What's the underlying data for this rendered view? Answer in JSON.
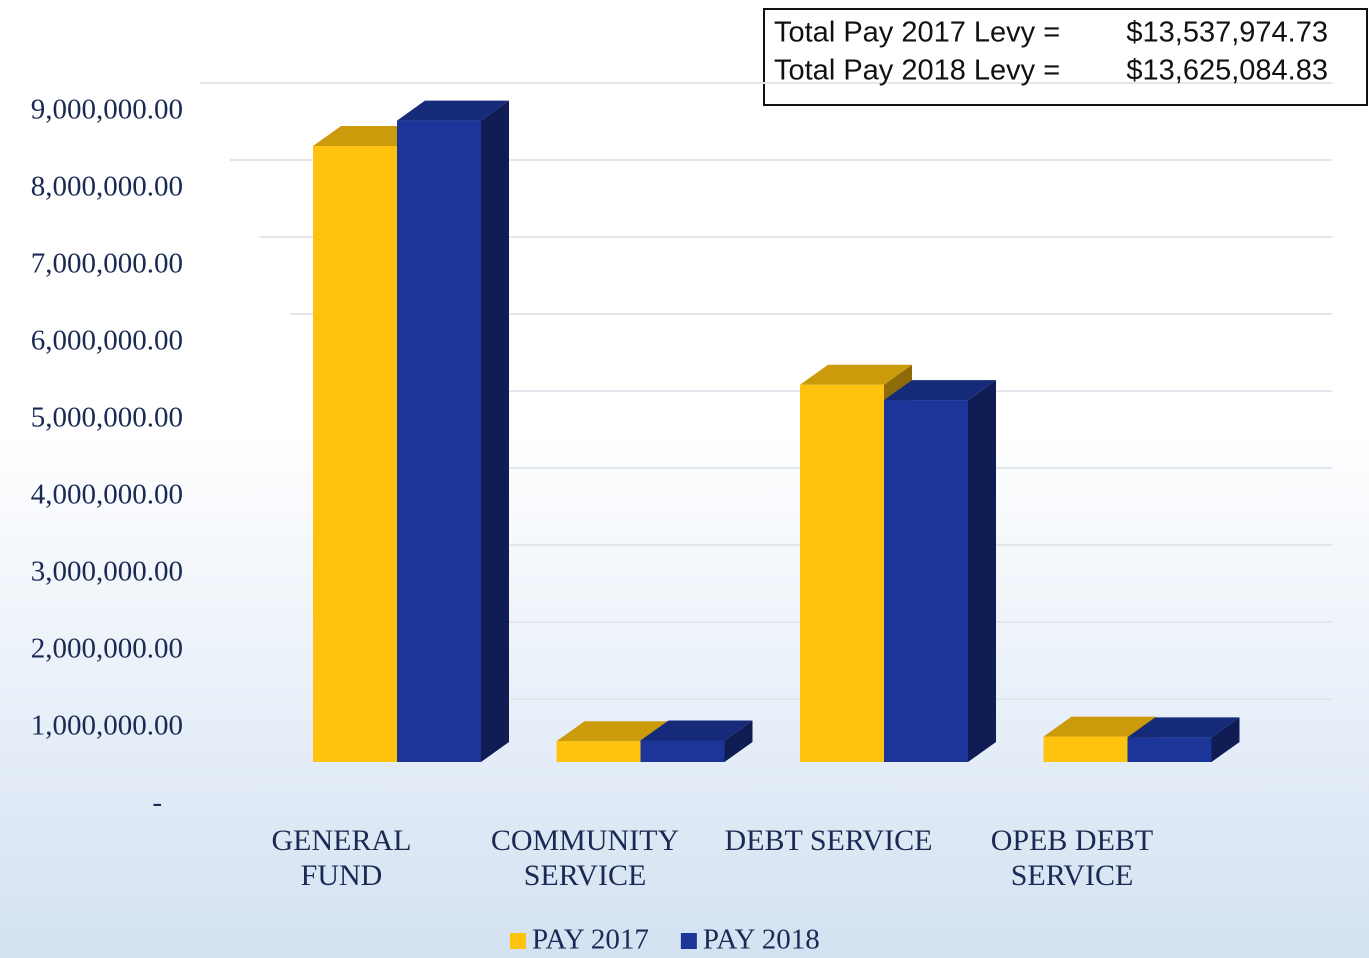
{
  "chart_data": {
    "type": "bar3d",
    "categories": [
      "GENERAL FUND",
      "COMMUNITY SERVICE",
      "DEBT SERVICE",
      "OPEB DEBT SERVICE"
    ],
    "series": [
      {
        "name": "PAY 2017",
        "color": "#ffc20e",
        "values": [
          8000000,
          270000,
          4900000,
          330000
        ]
      },
      {
        "name": "PAY 2018",
        "color": "#1c3598",
        "values": [
          8330000,
          280000,
          4700000,
          320000
        ]
      }
    ],
    "ylim": [
      0,
      9000000
    ],
    "yticks": [
      {
        "value": 0,
        "label": "-"
      },
      {
        "value": 1000000,
        "label": "1,000,000.00"
      },
      {
        "value": 2000000,
        "label": "2,000,000.00"
      },
      {
        "value": 3000000,
        "label": "3,000,000.00"
      },
      {
        "value": 4000000,
        "label": "4,000,000.00"
      },
      {
        "value": 5000000,
        "label": "5,000,000.00"
      },
      {
        "value": 6000000,
        "label": "6,000,000.00"
      },
      {
        "value": 7000000,
        "label": "7,000,000.00"
      },
      {
        "value": 8000000,
        "label": "8,000,000.00"
      },
      {
        "value": 9000000,
        "label": "9,000,000.00"
      }
    ],
    "grid": true,
    "legend": "bottom",
    "annotations": [
      {
        "label": "Total Pay 2017 Levy =",
        "value": "$13,537,974.73"
      },
      {
        "label": "Total Pay 2018 Levy =",
        "value": "$13,625,084.83"
      }
    ]
  }
}
